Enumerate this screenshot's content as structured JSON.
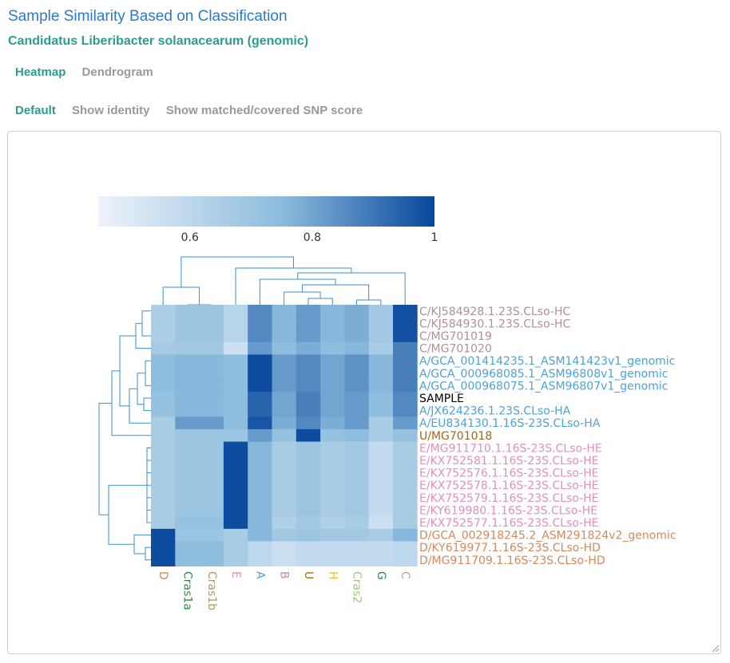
{
  "page": {
    "title": "Sample Similarity Based on Classification",
    "subtitle": "Candidatus Liberibacter solanacearum (genomic)"
  },
  "view_tabs": [
    {
      "label": "Heatmap",
      "active": true
    },
    {
      "label": "Dendrogram",
      "active": false
    }
  ],
  "mode_tabs": [
    {
      "label": "Default",
      "active": true
    },
    {
      "label": "Show identity",
      "active": false
    },
    {
      "label": "Show matched/covered SNP score",
      "active": false
    }
  ],
  "colors": {
    "low": "#eef3fb",
    "mid": "#8bbbdc",
    "high": "#08479c",
    "dendrogram": "#3b8fd1"
  },
  "chart_data": {
    "type": "heatmap",
    "colorscale": {
      "min": 0.45,
      "max": 1,
      "ticks": [
        0.6,
        0.8,
        1
      ],
      "tick_labels": [
        "0.6",
        "0.8",
        "1"
      ]
    },
    "columns": [
      {
        "label": "D",
        "color": "#d4895a"
      },
      {
        "label": "Cras1a",
        "color": "#2e8b3e"
      },
      {
        "label": "Cras1b",
        "color": "#a79b5e"
      },
      {
        "label": "E",
        "color": "#e08fc0"
      },
      {
        "label": "A",
        "color": "#4aa3d9"
      },
      {
        "label": "B",
        "color": "#c88aa5"
      },
      {
        "label": "U",
        "color": "#a0661a"
      },
      {
        "label": "H",
        "color": "#e0c62f"
      },
      {
        "label": "Cras2",
        "color": "#9acb74"
      },
      {
        "label": "G",
        "color": "#2e8b3e"
      },
      {
        "label": "C",
        "color": "#c99aa0"
      }
    ],
    "rows": [
      {
        "label": "C/KJ584928.1.23S.CLso-HC",
        "color": "#b09096"
      },
      {
        "label": "C/KJ584930.1.23S.CLso-HC",
        "color": "#b09096"
      },
      {
        "label": "C/MG701019",
        "color": "#b09096"
      },
      {
        "label": "C/MG701020",
        "color": "#b09096"
      },
      {
        "label": "A/GCA_001414235.1_ASM141423v1_genomic",
        "color": "#4aa3d9"
      },
      {
        "label": "A/GCA_000968085.1_ASM96808v1_genomic",
        "color": "#4aa3d9"
      },
      {
        "label": "A/GCA_000968075.1_ASM96807v1_genomic",
        "color": "#4aa3d9"
      },
      {
        "label": "SAMPLE",
        "color": "#000000"
      },
      {
        "label": "A/JX624236.1.23S.CLso-HA",
        "color": "#4aa3d9"
      },
      {
        "label": "A/EU834130.1.16S-23S.CLso-HA",
        "color": "#4aa3d9"
      },
      {
        "label": "U/MG701018",
        "color": "#a0661a"
      },
      {
        "label": "E/MG911710.1.16S-23S.CLso-HE",
        "color": "#e08fc0"
      },
      {
        "label": "E/KX752581.1.16S-23S.CLso-HE",
        "color": "#e08fc0"
      },
      {
        "label": "E/KX752576.1.16S-23S.CLso-HE",
        "color": "#e08fc0"
      },
      {
        "label": "E/KX752578.1.16S-23S.CLso-HE",
        "color": "#e08fc0"
      },
      {
        "label": "E/KX752579.1.16S-23S.CLso-HE",
        "color": "#e08fc0"
      },
      {
        "label": "E/KY619980.1.16S-23S.CLso-HE",
        "color": "#e08fc0"
      },
      {
        "label": "E/KX752577.1.16S-23S.CLso-HE",
        "color": "#e08fc0"
      },
      {
        "label": "D/GCA_002918245.2_ASM291824v2_genomic",
        "color": "#d4895a"
      },
      {
        "label": "D/KY619977.1.16S-23S.CLso-HD",
        "color": "#d4895a"
      },
      {
        "label": "D/MG911709.1.16S-23S.CLso-HD",
        "color": "#d4895a"
      }
    ],
    "values": [
      [
        0.65,
        0.7,
        0.7,
        0.62,
        0.86,
        0.76,
        0.82,
        0.76,
        0.78,
        0.68,
        0.98
      ],
      [
        0.65,
        0.7,
        0.7,
        0.62,
        0.86,
        0.76,
        0.82,
        0.76,
        0.78,
        0.68,
        0.98
      ],
      [
        0.65,
        0.7,
        0.7,
        0.62,
        0.86,
        0.76,
        0.82,
        0.76,
        0.78,
        0.68,
        0.98
      ],
      [
        0.67,
        0.68,
        0.68,
        0.55,
        0.82,
        0.74,
        0.78,
        0.74,
        0.76,
        0.66,
        0.88
      ],
      [
        0.74,
        0.76,
        0.76,
        0.74,
        0.99,
        0.82,
        0.86,
        0.8,
        0.84,
        0.76,
        0.88
      ],
      [
        0.74,
        0.76,
        0.76,
        0.74,
        0.99,
        0.82,
        0.86,
        0.8,
        0.84,
        0.76,
        0.88
      ],
      [
        0.74,
        0.76,
        0.76,
        0.74,
        0.99,
        0.82,
        0.86,
        0.8,
        0.84,
        0.76,
        0.88
      ],
      [
        0.72,
        0.76,
        0.76,
        0.74,
        0.94,
        0.8,
        0.88,
        0.8,
        0.82,
        0.74,
        0.86
      ],
      [
        0.72,
        0.76,
        0.76,
        0.74,
        0.94,
        0.8,
        0.88,
        0.8,
        0.82,
        0.74,
        0.86
      ],
      [
        0.66,
        0.82,
        0.82,
        0.74,
        0.97,
        0.78,
        0.86,
        0.78,
        0.82,
        0.66,
        0.82
      ],
      [
        0.66,
        0.7,
        0.7,
        0.7,
        0.82,
        0.72,
        0.99,
        0.72,
        0.74,
        0.66,
        0.72
      ],
      [
        0.66,
        0.7,
        0.7,
        0.99,
        0.76,
        0.66,
        0.7,
        0.66,
        0.68,
        0.58,
        0.66
      ],
      [
        0.66,
        0.7,
        0.7,
        0.99,
        0.76,
        0.66,
        0.7,
        0.66,
        0.68,
        0.58,
        0.66
      ],
      [
        0.66,
        0.7,
        0.7,
        0.99,
        0.76,
        0.66,
        0.7,
        0.66,
        0.68,
        0.58,
        0.66
      ],
      [
        0.66,
        0.7,
        0.7,
        0.99,
        0.76,
        0.66,
        0.7,
        0.66,
        0.68,
        0.58,
        0.66
      ],
      [
        0.66,
        0.7,
        0.7,
        0.99,
        0.76,
        0.66,
        0.7,
        0.66,
        0.68,
        0.58,
        0.66
      ],
      [
        0.66,
        0.7,
        0.7,
        0.99,
        0.76,
        0.66,
        0.7,
        0.66,
        0.68,
        0.58,
        0.66
      ],
      [
        0.66,
        0.72,
        0.72,
        0.99,
        0.76,
        0.64,
        0.68,
        0.64,
        0.66,
        0.55,
        0.66
      ],
      [
        0.99,
        0.7,
        0.7,
        0.66,
        0.76,
        0.68,
        0.7,
        0.68,
        0.68,
        0.66,
        0.76
      ],
      [
        0.99,
        0.74,
        0.74,
        0.66,
        0.6,
        0.56,
        0.58,
        0.58,
        0.58,
        0.58,
        0.6
      ],
      [
        0.99,
        0.74,
        0.74,
        0.66,
        0.6,
        0.56,
        0.58,
        0.58,
        0.58,
        0.58,
        0.6
      ]
    ]
  }
}
